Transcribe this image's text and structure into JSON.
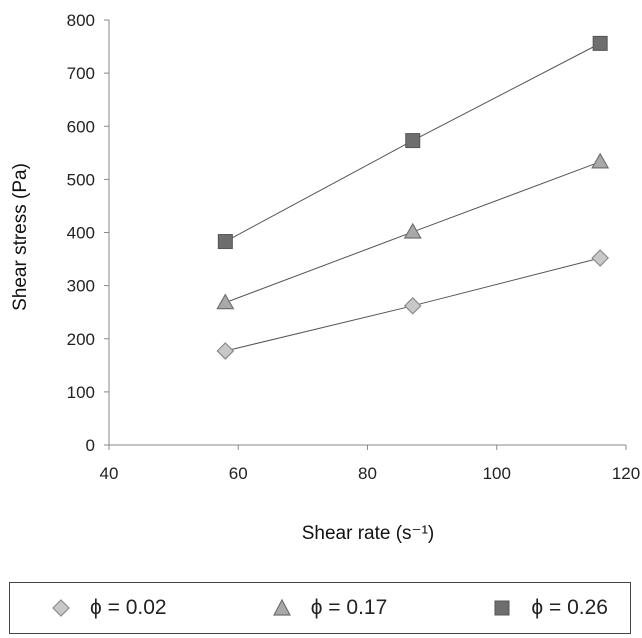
{
  "chart_data": {
    "type": "line",
    "title": "",
    "xlabel": "Shear rate (s⁻¹)",
    "ylabel": "Shear stress (Pa)",
    "xlim": [
      40,
      120
    ],
    "ylim": [
      0,
      800
    ],
    "xticks": [
      40,
      60,
      80,
      100,
      120
    ],
    "yticks": [
      0,
      100,
      200,
      300,
      400,
      500,
      600,
      700,
      800
    ],
    "grid": false,
    "legend_position": "bottom",
    "series": [
      {
        "name": "ϕ = 0.02",
        "marker": "diamond",
        "color": "#c8c8c8",
        "x": [
          58,
          87,
          116
        ],
        "y": [
          177,
          262,
          352
        ]
      },
      {
        "name": "ϕ = 0.17",
        "marker": "triangle",
        "color": "#a9a9a9",
        "x": [
          58,
          87,
          116
        ],
        "y": [
          268,
          401,
          533
        ]
      },
      {
        "name": "ϕ = 0.26",
        "marker": "square",
        "color": "#6e6e6e",
        "x": [
          58,
          87,
          116
        ],
        "y": [
          383,
          573,
          756
        ]
      }
    ]
  }
}
